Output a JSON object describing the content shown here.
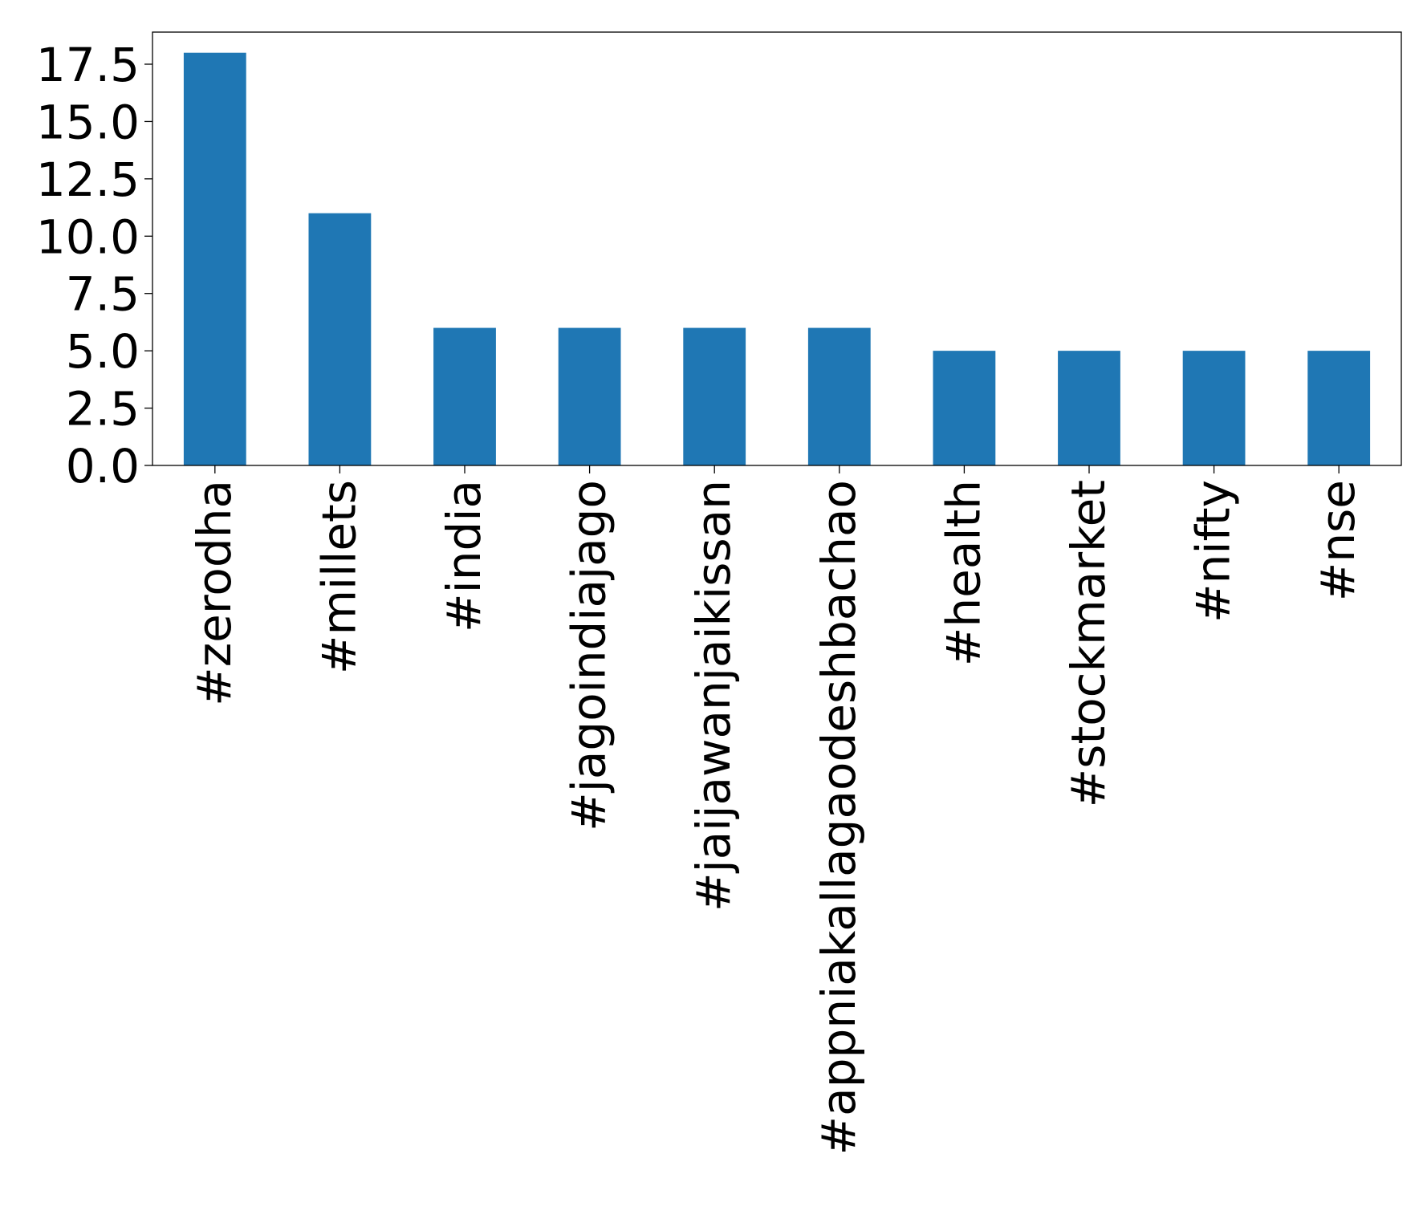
{
  "chart_data": {
    "type": "bar",
    "title": "",
    "xlabel": "",
    "ylabel": "",
    "categories": [
      "#zerodha",
      "#millets",
      "#india",
      "#jagoindiajago",
      "#jaijawanjaikissan",
      "#appniakallagaodeshbachao",
      "#health",
      "#stockmarket",
      "#nifty",
      "#nse"
    ],
    "values": [
      18,
      11,
      6,
      6,
      6,
      6,
      5,
      5,
      5,
      5
    ],
    "ylim": [
      0,
      18.9
    ],
    "yticks": [
      "0.0",
      "2.5",
      "5.0",
      "7.5",
      "10.0",
      "12.5",
      "15.0",
      "17.5"
    ],
    "ytick_values": [
      0,
      2.5,
      5,
      7.5,
      10,
      12.5,
      15,
      17.5
    ],
    "grid": false,
    "legend": "none",
    "colors": {
      "bar": "#1f77b4",
      "axis": "#000000",
      "background": "#ffffff"
    }
  }
}
